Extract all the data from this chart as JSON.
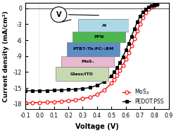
{
  "title": "",
  "xlabel": "Voltage (V)",
  "ylabel": "Current density (mA/cm²)",
  "xlim": [
    -0.1,
    0.9
  ],
  "ylim": [
    -19,
    1
  ],
  "xticks": [
    -0.1,
    0.0,
    0.1,
    0.2,
    0.3,
    0.4,
    0.5,
    0.6,
    0.7,
    0.8,
    0.9
  ],
  "yticks": [
    0,
    -3,
    -6,
    -9,
    -12,
    -15,
    -18
  ],
  "mosx_color": "#ff0000",
  "pedot_color": "#000000",
  "mosx_label": "MoS$_X$",
  "pedot_label": "PEDOT:PSS",
  "mosx_x": [
    -0.1,
    -0.05,
    0.0,
    0.05,
    0.1,
    0.15,
    0.2,
    0.25,
    0.3,
    0.35,
    0.4,
    0.45,
    0.5,
    0.52,
    0.54,
    0.56,
    0.58,
    0.6,
    0.62,
    0.64,
    0.66,
    0.68,
    0.7,
    0.72,
    0.74,
    0.76,
    0.78,
    0.8,
    0.82
  ],
  "mosx_y": [
    -17.8,
    -17.75,
    -17.7,
    -17.65,
    -17.6,
    -17.5,
    -17.4,
    -17.25,
    -17.0,
    -16.7,
    -16.2,
    -15.4,
    -14.1,
    -13.4,
    -12.6,
    -11.7,
    -10.7,
    -9.6,
    -8.4,
    -7.1,
    -5.7,
    -4.3,
    -2.9,
    -1.7,
    -0.8,
    -0.2,
    0.2,
    0.5,
    0.7
  ],
  "pedot_x": [
    -0.1,
    -0.05,
    0.0,
    0.05,
    0.1,
    0.15,
    0.2,
    0.25,
    0.3,
    0.35,
    0.4,
    0.45,
    0.5,
    0.52,
    0.54,
    0.56,
    0.58,
    0.6,
    0.62,
    0.64,
    0.66,
    0.68,
    0.7,
    0.72,
    0.74,
    0.76,
    0.78,
    0.8,
    0.82
  ],
  "pedot_y": [
    -15.5,
    -15.5,
    -15.5,
    -15.45,
    -15.4,
    -15.35,
    -15.3,
    -15.2,
    -15.1,
    -14.9,
    -14.5,
    -13.8,
    -12.7,
    -12.0,
    -11.2,
    -10.2,
    -9.1,
    -7.9,
    -6.6,
    -5.3,
    -3.9,
    -2.6,
    -1.5,
    -0.7,
    -0.15,
    0.2,
    0.45,
    0.6,
    0.7
  ],
  "bg_color": "#ffffff",
  "layer_colors": [
    "#b8d8e8",
    "#4db84d",
    "#5b9bd5",
    "#d4a0c0",
    "#c8d8b8"
  ],
  "layer_labels": [
    "Al",
    "PFN",
    "PTB7-Th:PC₇₁BM",
    "MoSₓ",
    "Glass/ITO"
  ]
}
